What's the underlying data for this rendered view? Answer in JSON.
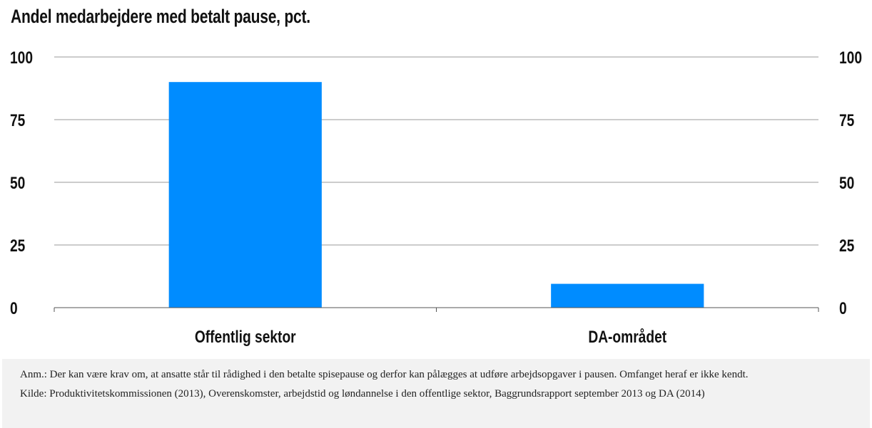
{
  "title": "Andel medarbejdere med betalt pause, pct.",
  "colors": {
    "bar": "#008cff",
    "grid": "#9a9a9a",
    "axis": "#555555",
    "notes_bg": "#f2f2f2"
  },
  "chart_data": {
    "type": "bar",
    "title": "Andel medarbejdere med betalt pause, pct.",
    "categories": [
      "Offentlig sektor",
      "DA-området"
    ],
    "values": [
      90,
      9.5
    ],
    "ylim": [
      0,
      100
    ],
    "yticks": [
      "0",
      "25",
      "50",
      "75",
      "100"
    ],
    "ytick_values": [
      0,
      25,
      50,
      75,
      100
    ],
    "xlabel": "",
    "ylabel": "",
    "grid": true,
    "secondary_axis": true
  },
  "notes": {
    "anm": "Anm.: Der kan være krav om, at ansatte står til rådighed i den betalte spisepause og derfor kan pålægges at udføre arbejdsopgaver i pausen. Omfanget heraf er ikke kendt.",
    "kilde": "Kilde: Produktivitetskommissionen (2013), Overenskomster, arbejdstid og løndannelse i den offentlige sektor, Baggrundsrapport september 2013 og DA (2014)"
  }
}
